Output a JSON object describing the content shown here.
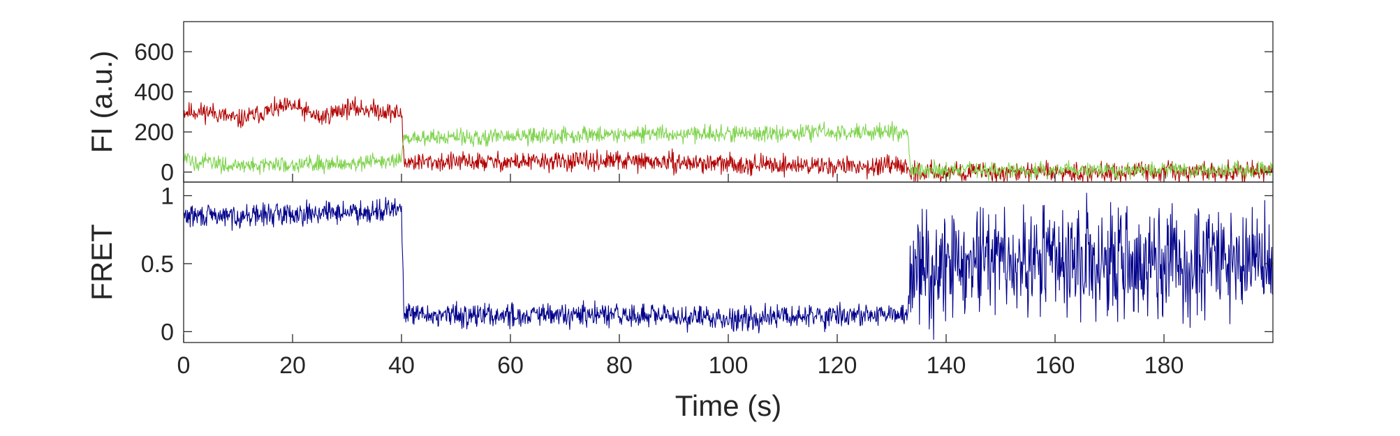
{
  "colors": {
    "acceptor": "#b30000",
    "donor": "#7fd34e",
    "fret": "#00008b",
    "axes": "#262626"
  },
  "chart_data": [
    {
      "id": "fluorescence",
      "type": "line",
      "ylabel": "FI (a.u.)",
      "xlim": [
        0,
        200
      ],
      "ylim": [
        -50,
        750
      ],
      "yticks": [
        0,
        200,
        400,
        600
      ],
      "ytick_labels": [
        "0",
        "200",
        "400",
        "600"
      ],
      "grid": false,
      "series": [
        {
          "key": "acceptor",
          "color": "#b30000",
          "x": [
            0,
            5,
            10,
            15,
            20,
            25,
            30,
            35,
            40,
            40.5,
            60,
            80,
            100,
            120,
            133,
            133.5,
            200
          ],
          "values": [
            300,
            300,
            260,
            300,
            330,
            270,
            320,
            310,
            290,
            50,
            50,
            55,
            40,
            30,
            25,
            0,
            0
          ],
          "noise": 70
        },
        {
          "key": "donor",
          "color": "#7fd34e",
          "x": [
            0,
            10,
            20,
            30,
            40,
            40.5,
            60,
            80,
            100,
            120,
            133,
            133.5,
            200
          ],
          "values": [
            60,
            30,
            40,
            45,
            55,
            170,
            175,
            190,
            190,
            200,
            200,
            10,
            10
          ],
          "noise": 60
        }
      ]
    },
    {
      "id": "fret",
      "type": "line",
      "ylabel": "FRET",
      "xlabel": "Time (s)",
      "xlim": [
        0,
        200
      ],
      "ylim": [
        -0.08,
        1.1
      ],
      "yticks": [
        0,
        0.5,
        1
      ],
      "ytick_labels": [
        "0",
        "0.5",
        "1"
      ],
      "xticks": [
        0,
        20,
        40,
        60,
        80,
        100,
        120,
        140,
        160,
        180
      ],
      "xtick_labels": [
        "0",
        "20",
        "40",
        "60",
        "80",
        "100",
        "120",
        "140",
        "160",
        "180"
      ],
      "grid": false,
      "series": [
        {
          "key": "fret",
          "color": "#00008b",
          "x": [
            0,
            10,
            20,
            30,
            40,
            40.5,
            60,
            80,
            100,
            120,
            133,
            133.5,
            200
          ],
          "values": [
            0.85,
            0.85,
            0.87,
            0.88,
            0.9,
            0.12,
            0.12,
            0.12,
            0.1,
            0.12,
            0.12,
            0.5,
            0.5
          ],
          "noise": [
            0.12,
            0.12,
            0.12,
            0.12,
            0.12,
            0.13,
            0.13,
            0.13,
            0.13,
            0.13,
            0.13,
            0.6,
            0.6
          ]
        }
      ]
    }
  ]
}
